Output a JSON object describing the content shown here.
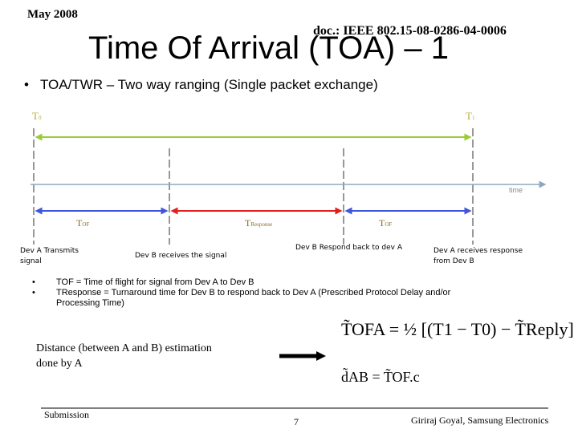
{
  "header": {
    "date": "May 2008",
    "doc_id": "doc.: IEEE 802.15-08-0286-04-0006"
  },
  "title": "Time Of Arrival (TOA) – 1",
  "bullet_main": "TOA/TWR – Two way ranging (Single packet exchange)",
  "diagram": {
    "t0": "T0",
    "t1": "T1",
    "time_label": "time",
    "tof_left": "TOF",
    "tresponse": "TResponse",
    "tof_right": "TOF",
    "colors": {
      "green": "#9acd32",
      "blue": "#3f56d8",
      "red": "#e0201a",
      "axis": "#8fa8c0",
      "dash": "#303030"
    },
    "events": {
      "a_transmits_line1": "Dev A Transmits",
      "a_transmits_line2": "signal",
      "b_receives": "Dev B receives the signal",
      "b_responds": "Dev B Respond back to dev A",
      "a_receives_line1": "Dev A receives response",
      "a_receives_line2": "from Dev B"
    }
  },
  "definitions": {
    "tof_text": "TOF = Time of flight for signal from Dev A to Dev B",
    "tresp_line1": "TResponse = Turnaround time for Dev B to respond back to Dev A (Prescribed Protocol Delay and/or",
    "tresp_line2": "Processing Time)"
  },
  "distance": {
    "line1": "Distance (between A and B) estimation",
    "line2": "done by A"
  },
  "formulas": {
    "f1": "T̃OFA = ½ [(T1 − T0) − T̃Reply]",
    "f2": "d̃AB = T̃OF.c"
  },
  "footer": {
    "submission": "Submission",
    "page": "7",
    "author": "Giriraj Goyal, Samsung Electronics"
  }
}
